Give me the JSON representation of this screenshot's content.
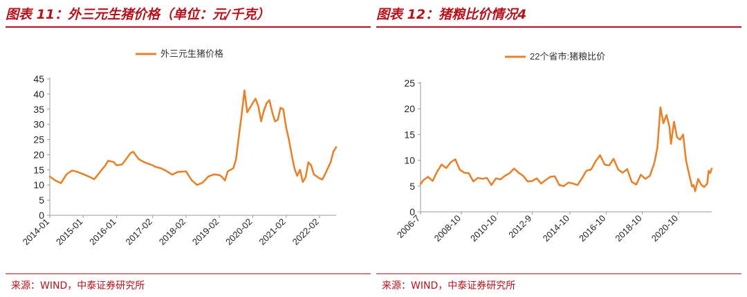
{
  "panels": [
    {
      "title": "图表 11：外三元生猪价格（单位：元/千克）",
      "source": "来源：WIND，中泰证券研究所"
    },
    {
      "title": "图表 12：猪粮比价情况4",
      "source": "来源：WIND，中泰证券研究所"
    }
  ],
  "chart_data": [
    {
      "type": "line",
      "series": [
        {
          "name": "外三元生猪价格",
          "color": "#e8822a",
          "points": [
            [
              "2014-01",
              12.8
            ],
            [
              "2014-03",
              11.5
            ],
            [
              "2014-05",
              10.6
            ],
            [
              "2014-07",
              13.5
            ],
            [
              "2014-09",
              14.8
            ],
            [
              "2014-11",
              14.3
            ],
            [
              "2015-01",
              13.6
            ],
            [
              "2015-03",
              12.8
            ],
            [
              "2015-05",
              11.9
            ],
            [
              "2015-07",
              14.2
            ],
            [
              "2015-09",
              16.5
            ],
            [
              "2015-10",
              18.0
            ],
            [
              "2015-12",
              17.6
            ],
            [
              "2016-01",
              16.5
            ],
            [
              "2016-03",
              16.8
            ],
            [
              "2016-05",
              19.2
            ],
            [
              "2016-06",
              20.5
            ],
            [
              "2016-07",
              21.0
            ],
            [
              "2016-09",
              18.5
            ],
            [
              "2016-11",
              17.5
            ],
            [
              "2017-02",
              16.5
            ],
            [
              "2017-03",
              16.0
            ],
            [
              "2017-05",
              15.5
            ],
            [
              "2017-07",
              14.6
            ],
            [
              "2017-09",
              13.4
            ],
            [
              "2017-11",
              14.3
            ],
            [
              "2018-02",
              14.5
            ],
            [
              "2018-04",
              11.6
            ],
            [
              "2018-06",
              10.0
            ],
            [
              "2018-08",
              10.8
            ],
            [
              "2018-10",
              12.8
            ],
            [
              "2018-12",
              13.5
            ],
            [
              "2019-02",
              13.3
            ],
            [
              "2019-03",
              12.6
            ],
            [
              "2019-04",
              11.5
            ],
            [
              "2019-05",
              14.5
            ],
            [
              "2019-07",
              15.5
            ],
            [
              "2019-08",
              18.5
            ],
            [
              "2019-09",
              26.0
            ],
            [
              "2019-10",
              33.0
            ],
            [
              "2019-11",
              41.2
            ],
            [
              "2019-12",
              34.0
            ],
            [
              "2020-02",
              37.0
            ],
            [
              "2020-03",
              38.5
            ],
            [
              "2020-04",
              36.0
            ],
            [
              "2020-05",
              31.0
            ],
            [
              "2020-06",
              34.5
            ],
            [
              "2020-07",
              37.0
            ],
            [
              "2020-08",
              38.0
            ],
            [
              "2020-09",
              34.0
            ],
            [
              "2020-10",
              31.0
            ],
            [
              "2020-11",
              31.5
            ],
            [
              "2020-12",
              35.5
            ],
            [
              "2021-01",
              35.0
            ],
            [
              "2021-02",
              29.0
            ],
            [
              "2021-03",
              25.0
            ],
            [
              "2021-04",
              20.0
            ],
            [
              "2021-05",
              15.5
            ],
            [
              "2021-06",
              13.0
            ],
            [
              "2021-07",
              15.0
            ],
            [
              "2021-08",
              11.0
            ],
            [
              "2021-09",
              12.5
            ],
            [
              "2021-10",
              17.5
            ],
            [
              "2021-11",
              16.5
            ],
            [
              "2021-12",
              13.5
            ],
            [
              "2022-02",
              12.2
            ],
            [
              "2022-03",
              11.8
            ],
            [
              "2022-04",
              13.5
            ],
            [
              "2022-05",
              15.5
            ],
            [
              "2022-06",
              17.5
            ],
            [
              "2022-07",
              21.0
            ],
            [
              "2022-08",
              22.5
            ]
          ]
        }
      ],
      "x_ticks": [
        "2014-01",
        "2015-01",
        "2016-01",
        "2017-02",
        "2018-02",
        "2019-02",
        "2020-02",
        "2021-02",
        "2022-02"
      ],
      "x_range": [
        "2014-01",
        "2022-08"
      ],
      "ylim": [
        0,
        45
      ],
      "y_ticks": [
        0,
        5,
        10,
        15,
        20,
        25,
        30,
        35,
        40,
        45
      ],
      "legend": "top-center",
      "grid": false
    },
    {
      "type": "line",
      "series": [
        {
          "name": "22个省市:猪粮比价",
          "color": "#e8822a",
          "points": [
            [
              "2006-07",
              5.4
            ],
            [
              "2006-09",
              6.2
            ],
            [
              "2006-12",
              6.8
            ],
            [
              "2007-03",
              6.0
            ],
            [
              "2007-06",
              7.8
            ],
            [
              "2007-09",
              9.2
            ],
            [
              "2007-12",
              8.5
            ],
            [
              "2008-03",
              9.6
            ],
            [
              "2008-06",
              10.2
            ],
            [
              "2008-09",
              8.2
            ],
            [
              "2008-12",
              7.6
            ],
            [
              "2009-03",
              7.5
            ],
            [
              "2009-06",
              5.9
            ],
            [
              "2009-09",
              6.6
            ],
            [
              "2009-12",
              6.4
            ],
            [
              "2010-03",
              6.6
            ],
            [
              "2010-06",
              5.2
            ],
            [
              "2010-09",
              6.5
            ],
            [
              "2010-12",
              6.3
            ],
            [
              "2011-03",
              7.0
            ],
            [
              "2011-06",
              7.5
            ],
            [
              "2011-09",
              8.4
            ],
            [
              "2011-12",
              7.6
            ],
            [
              "2012-03",
              7.0
            ],
            [
              "2012-06",
              5.9
            ],
            [
              "2012-09",
              6.0
            ],
            [
              "2012-12",
              6.5
            ],
            [
              "2013-03",
              5.5
            ],
            [
              "2013-06",
              6.2
            ],
            [
              "2013-09",
              6.8
            ],
            [
              "2013-12",
              6.9
            ],
            [
              "2014-03",
              5.2
            ],
            [
              "2014-06",
              5.0
            ],
            [
              "2014-09",
              5.7
            ],
            [
              "2014-12",
              5.5
            ],
            [
              "2015-03",
              5.2
            ],
            [
              "2015-06",
              6.5
            ],
            [
              "2015-09",
              8.0
            ],
            [
              "2015-12",
              8.2
            ],
            [
              "2016-03",
              9.8
            ],
            [
              "2016-06",
              11.0
            ],
            [
              "2016-09",
              9.2
            ],
            [
              "2016-12",
              9.0
            ],
            [
              "2017-03",
              10.3
            ],
            [
              "2017-06",
              8.2
            ],
            [
              "2017-09",
              7.6
            ],
            [
              "2017-12",
              8.3
            ],
            [
              "2018-03",
              5.8
            ],
            [
              "2018-06",
              5.3
            ],
            [
              "2018-09",
              7.2
            ],
            [
              "2018-12",
              6.4
            ],
            [
              "2019-03",
              7.0
            ],
            [
              "2019-06",
              9.5
            ],
            [
              "2019-08",
              12.5
            ],
            [
              "2019-10",
              20.3
            ],
            [
              "2019-12",
              17.2
            ],
            [
              "2020-02",
              18.8
            ],
            [
              "2020-04",
              16.5
            ],
            [
              "2020-05",
              13.2
            ],
            [
              "2020-07",
              17.5
            ],
            [
              "2020-09",
              14.5
            ],
            [
              "2020-11",
              14.0
            ],
            [
              "2021-01",
              15.0
            ],
            [
              "2021-03",
              10.0
            ],
            [
              "2021-05",
              7.3
            ],
            [
              "2021-07",
              4.9
            ],
            [
              "2021-08",
              5.2
            ],
            [
              "2021-09",
              4.0
            ],
            [
              "2021-11",
              6.4
            ],
            [
              "2022-01",
              5.3
            ],
            [
              "2022-03",
              4.8
            ],
            [
              "2022-05",
              5.5
            ],
            [
              "2022-06",
              8.0
            ],
            [
              "2022-07",
              7.5
            ],
            [
              "2022-08",
              8.4
            ]
          ]
        }
      ],
      "x_ticks": [
        "2006-7",
        "2008-10",
        "2010-10",
        "2012-9",
        "2014-10",
        "2016-10",
        "2018-10",
        "2020-10"
      ],
      "x_range": [
        "2006-07",
        "2022-08"
      ],
      "ylim": [
        0,
        25
      ],
      "y_ticks": [
        0,
        5,
        10,
        15,
        20,
        25
      ],
      "legend": "top-center",
      "grid": false
    }
  ]
}
